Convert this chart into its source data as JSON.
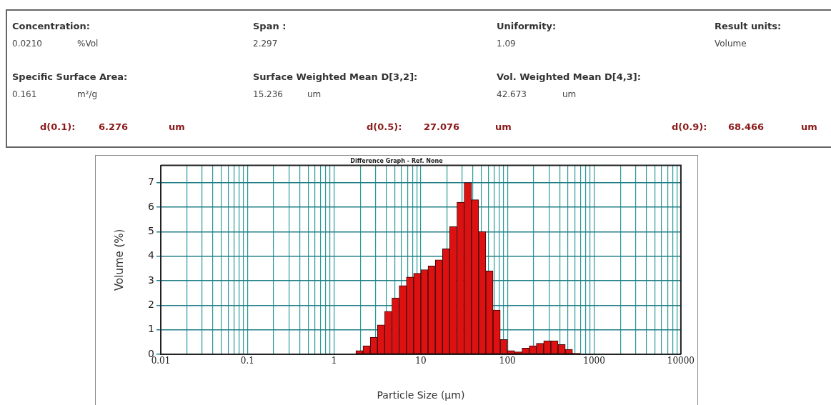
{
  "chart_data": {
    "type": "histogram",
    "title": "Difference Graph - Ref. None",
    "xlabel": "Particle Size (µm)",
    "ylabel": "Volume (%)",
    "bins": [
      1.78,
      2.15,
      2.61,
      3.16,
      3.83,
      4.64,
      5.62,
      6.81,
      8.25,
      10,
      12.1,
      14.7,
      17.8,
      21.5,
      26.1,
      31.6,
      38.3,
      46.4,
      56.2,
      68.1,
      82.5,
      100,
      121,
      147,
      178,
      215,
      261,
      316,
      383,
      464,
      562,
      681
    ],
    "values": [
      0.15,
      0.35,
      0.7,
      1.2,
      1.75,
      2.3,
      2.8,
      3.15,
      3.3,
      3.45,
      3.6,
      3.85,
      4.3,
      5.2,
      6.2,
      7.0,
      6.3,
      5.0,
      3.4,
      1.8,
      0.6,
      0.15,
      0.1,
      0.25,
      0.35,
      0.45,
      0.55,
      0.55,
      0.4,
      0.2,
      0.05
    ],
    "color": "#dd1111",
    "log": "x",
    "grid": true,
    "xlim": [
      0.01,
      10000
    ],
    "ylim": [
      0,
      7.7
    ],
    "yticks": [
      0,
      1,
      2,
      3,
      4,
      5,
      6,
      7
    ],
    "xticks": [
      0.01,
      {
        "value": 0.02,
        "label": null
      },
      {
        "value": 0.03,
        "label": null
      },
      {
        "value": 0.04,
        "label": null
      },
      {
        "value": 0.05,
        "label": null
      },
      {
        "value": 0.06,
        "label": null
      },
      {
        "value": 0.07,
        "label": null
      },
      {
        "value": 0.08,
        "label": null
      },
      {
        "value": 0.09,
        "label": null
      },
      0.1,
      {
        "value": 0.2,
        "label": null
      },
      {
        "value": 0.3,
        "label": null
      },
      {
        "value": 0.4,
        "label": null
      },
      {
        "value": 0.5,
        "label": null
      },
      {
        "value": 0.6,
        "label": null
      },
      {
        "value": 0.7,
        "label": null
      },
      {
        "value": 0.8,
        "label": null
      },
      {
        "value": 0.9,
        "label": null
      },
      1,
      {
        "value": 2,
        "label": null
      },
      {
        "value": 3,
        "label": null
      },
      {
        "value": 4,
        "label": null
      },
      {
        "value": 5,
        "label": null
      },
      {
        "value": 6,
        "label": null
      },
      {
        "value": 7,
        "label": null
      },
      {
        "value": 8,
        "label": null
      },
      {
        "value": 9,
        "label": null
      },
      10,
      {
        "value": 20,
        "label": null
      },
      {
        "value": 30,
        "label": null
      },
      {
        "value": 40,
        "label": null
      },
      {
        "value": 50,
        "label": null
      },
      {
        "value": 60,
        "label": null
      },
      {
        "value": 70,
        "label": null
      },
      {
        "value": 80,
        "label": null
      },
      {
        "value": 90,
        "label": null
      },
      100,
      {
        "value": 200,
        "label": null
      },
      {
        "value": 300,
        "label": null
      },
      {
        "value": 400,
        "label": null
      },
      {
        "value": 500,
        "label": null
      },
      {
        "value": 600,
        "label": null
      },
      {
        "value": 700,
        "label": null
      },
      {
        "value": 800,
        "label": null
      },
      {
        "value": 900,
        "label": null
      },
      1000,
      {
        "value": 2000,
        "label": null
      },
      {
        "value": 3000,
        "label": null
      },
      {
        "value": 4000,
        "label": null
      },
      {
        "value": 5000,
        "label": null
      },
      {
        "value": 6000,
        "label": null
      },
      {
        "value": 7000,
        "label": null
      },
      {
        "value": 8000,
        "label": null
      },
      {
        "value": 9000,
        "label": null
      },
      10000
    ],
    "annotations": [
      "Concentration:",
      "0.0210",
      "%Vol",
      "Span :",
      "2.297",
      "Uniformity:",
      "1.09",
      "Result units:",
      "Volume",
      "Specific Surface Area:",
      "0.161",
      "m²/g",
      "Surface Weighted Mean D[3,2]:",
      "15.236",
      "um",
      "Vol. Weighted Mean D[4,3]:",
      "42.673",
      "um",
      "d(0.1):",
      "6.276",
      "um",
      "d(0.5):",
      "27.076",
      "um",
      "d(0.9):",
      "68.466",
      "um"
    ]
  }
}
